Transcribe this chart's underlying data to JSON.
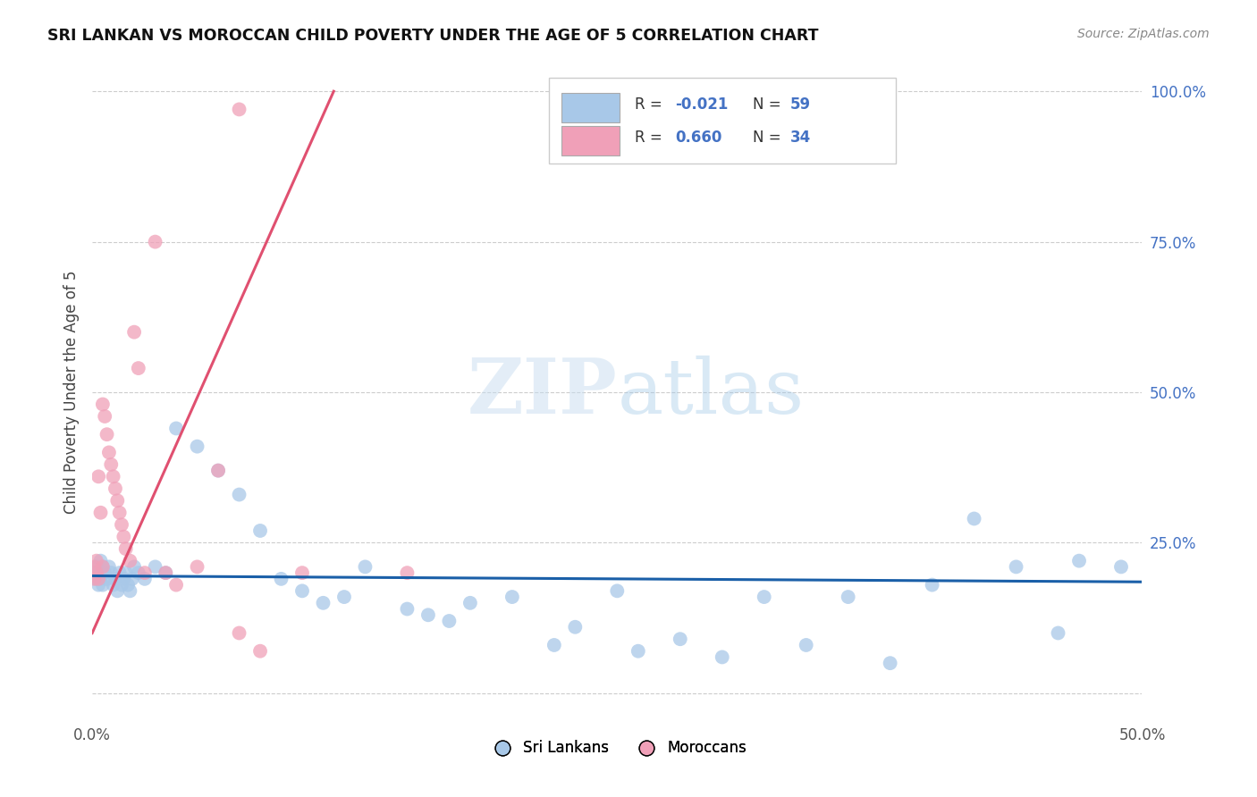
{
  "title": "SRI LANKAN VS MOROCCAN CHILD POVERTY UNDER THE AGE OF 5 CORRELATION CHART",
  "source": "Source: ZipAtlas.com",
  "ylabel": "Child Poverty Under the Age of 5",
  "xlim": [
    0.0,
    0.5
  ],
  "ylim": [
    -0.05,
    1.05
  ],
  "watermark_zip": "ZIP",
  "watermark_atlas": "atlas",
  "sri_lankan_R": -0.021,
  "sri_lankan_N": 59,
  "moroccan_R": 0.66,
  "moroccan_N": 34,
  "sri_lankan_color": "#a8c8e8",
  "moroccan_color": "#f0a0b8",
  "sri_lankan_line_color": "#1a5fa8",
  "moroccan_line_color": "#e05070",
  "sl_x": [
    0.001,
    0.002,
    0.002,
    0.003,
    0.003,
    0.004,
    0.004,
    0.005,
    0.005,
    0.006,
    0.007,
    0.008,
    0.009,
    0.01,
    0.011,
    0.012,
    0.013,
    0.014,
    0.015,
    0.016,
    0.017,
    0.018,
    0.019,
    0.02,
    0.022,
    0.025,
    0.03,
    0.035,
    0.04,
    0.05,
    0.06,
    0.07,
    0.08,
    0.09,
    0.1,
    0.11,
    0.12,
    0.13,
    0.15,
    0.16,
    0.17,
    0.18,
    0.2,
    0.22,
    0.23,
    0.25,
    0.26,
    0.28,
    0.3,
    0.32,
    0.34,
    0.36,
    0.38,
    0.4,
    0.42,
    0.44,
    0.46,
    0.47,
    0.49
  ],
  "sl_y": [
    0.2,
    0.19,
    0.21,
    0.18,
    0.2,
    0.19,
    0.22,
    0.21,
    0.18,
    0.2,
    0.19,
    0.21,
    0.2,
    0.18,
    0.19,
    0.17,
    0.2,
    0.18,
    0.19,
    0.2,
    0.18,
    0.17,
    0.19,
    0.21,
    0.2,
    0.19,
    0.21,
    0.2,
    0.44,
    0.41,
    0.37,
    0.33,
    0.27,
    0.19,
    0.17,
    0.15,
    0.16,
    0.21,
    0.14,
    0.13,
    0.12,
    0.15,
    0.16,
    0.08,
    0.11,
    0.17,
    0.07,
    0.09,
    0.06,
    0.16,
    0.08,
    0.16,
    0.05,
    0.18,
    0.29,
    0.21,
    0.1,
    0.22,
    0.21
  ],
  "mo_x": [
    0.001,
    0.001,
    0.002,
    0.002,
    0.003,
    0.003,
    0.004,
    0.005,
    0.005,
    0.006,
    0.007,
    0.008,
    0.009,
    0.01,
    0.011,
    0.012,
    0.013,
    0.014,
    0.015,
    0.016,
    0.018,
    0.02,
    0.022,
    0.025,
    0.03,
    0.035,
    0.04,
    0.05,
    0.06,
    0.07,
    0.08,
    0.1,
    0.15,
    0.07
  ],
  "mo_y": [
    0.21,
    0.19,
    0.22,
    0.2,
    0.36,
    0.19,
    0.3,
    0.48,
    0.21,
    0.46,
    0.43,
    0.4,
    0.38,
    0.36,
    0.34,
    0.32,
    0.3,
    0.28,
    0.26,
    0.24,
    0.22,
    0.6,
    0.54,
    0.2,
    0.75,
    0.2,
    0.18,
    0.21,
    0.37,
    0.1,
    0.07,
    0.2,
    0.2,
    0.97
  ],
  "sl_trend_x": [
    0.0,
    0.5
  ],
  "sl_trend_y": [
    0.195,
    0.185
  ],
  "mo_trend_x": [
    0.0,
    0.115
  ],
  "mo_trend_y": [
    0.1,
    1.0
  ]
}
